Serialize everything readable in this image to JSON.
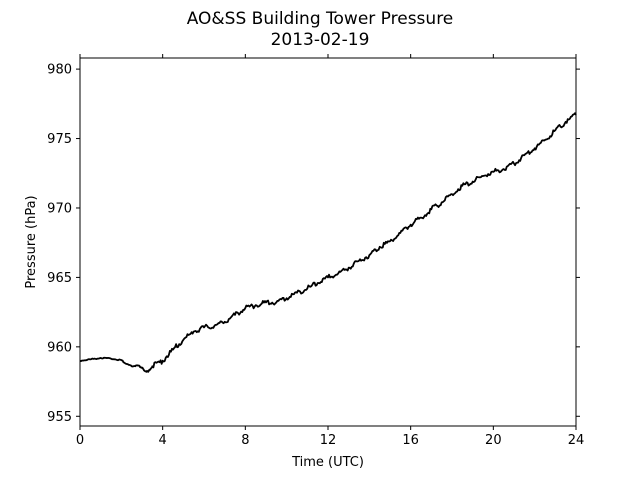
{
  "chart_data": {
    "type": "line",
    "title": "AO&SS Building Tower Pressure",
    "subtitle": "2013-02-19",
    "xlabel": "Time (UTC)",
    "ylabel": "Pressure (hPa)",
    "xlim": [
      0,
      24
    ],
    "ylim": [
      954.3,
      980.8
    ],
    "xticks": [
      0,
      4,
      8,
      12,
      16,
      20,
      24
    ],
    "yticks": [
      955,
      960,
      965,
      970,
      975,
      980
    ],
    "grid": false,
    "legend": "none",
    "series": [
      {
        "color": "#000000",
        "points": [
          [
            0.0,
            959.0
          ],
          [
            0.5,
            959.1
          ],
          [
            1.0,
            959.2
          ],
          [
            1.5,
            959.15
          ],
          [
            2.0,
            959.05
          ],
          [
            2.2,
            958.8
          ],
          [
            2.5,
            958.6
          ],
          [
            2.8,
            958.65
          ],
          [
            3.0,
            958.5
          ],
          [
            3.1,
            958.3
          ],
          [
            3.3,
            958.2
          ],
          [
            3.5,
            958.6
          ],
          [
            4.0,
            959.0
          ],
          [
            4.5,
            959.8
          ],
          [
            5.0,
            960.5
          ],
          [
            5.5,
            961.1
          ],
          [
            6.0,
            961.4
          ],
          [
            6.5,
            961.5
          ],
          [
            7.0,
            961.8
          ],
          [
            7.5,
            962.3
          ],
          [
            8.0,
            962.8
          ],
          [
            8.5,
            963.0
          ],
          [
            9.0,
            963.2
          ],
          [
            9.5,
            963.2
          ],
          [
            10.0,
            963.5
          ],
          [
            10.5,
            963.9
          ],
          [
            11.0,
            964.2
          ],
          [
            11.5,
            964.6
          ],
          [
            12.0,
            965.0
          ],
          [
            12.5,
            965.3
          ],
          [
            13.0,
            965.7
          ],
          [
            13.5,
            966.2
          ],
          [
            14.0,
            966.6
          ],
          [
            14.5,
            967.2
          ],
          [
            15.0,
            967.6
          ],
          [
            15.5,
            968.2
          ],
          [
            16.0,
            968.8
          ],
          [
            16.5,
            969.3
          ],
          [
            17.0,
            969.9
          ],
          [
            17.5,
            970.4
          ],
          [
            18.0,
            971.0
          ],
          [
            18.5,
            971.6
          ],
          [
            19.0,
            971.9
          ],
          [
            19.5,
            972.3
          ],
          [
            20.0,
            972.6
          ],
          [
            20.5,
            972.8
          ],
          [
            21.0,
            973.2
          ],
          [
            21.5,
            973.8
          ],
          [
            22.0,
            974.3
          ],
          [
            22.5,
            974.9
          ],
          [
            23.0,
            975.6
          ],
          [
            23.5,
            976.2
          ],
          [
            24.0,
            976.7
          ]
        ]
      }
    ]
  }
}
